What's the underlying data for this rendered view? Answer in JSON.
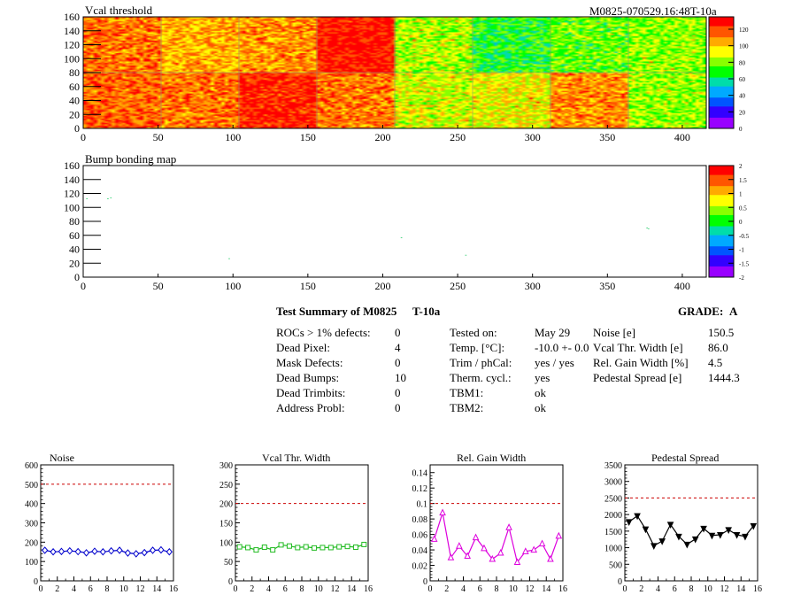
{
  "header": {
    "run_id": "M0825-070529.16:48T-10a"
  },
  "summary": {
    "title": "Test Summary of M0825",
    "temp_tag": "T-10a",
    "grade_label": "GRADE:",
    "grade": "A",
    "col1": [
      {
        "label": "ROCs > 1% defects:",
        "value": "0"
      },
      {
        "label": "Dead Pixel:",
        "value": "4"
      },
      {
        "label": "Mask Defects:",
        "value": "0"
      },
      {
        "label": "Dead Bumps:",
        "value": "10"
      },
      {
        "label": "Dead Trimbits:",
        "value": "0"
      },
      {
        "label": "Address Probl:",
        "value": "0"
      }
    ],
    "col2": [
      {
        "label": "Tested on:",
        "value": "May 29"
      },
      {
        "label": "Temp. [°C]:",
        "value": "-10.0 +- 0.0"
      },
      {
        "label": "Trim / phCal:",
        "value": "yes / yes"
      },
      {
        "label": "Therm. cycl.:",
        "value": "yes"
      },
      {
        "label": "TBM1:",
        "value": "ok"
      },
      {
        "label": "TBM2:",
        "value": "ok"
      }
    ],
    "col3": [
      {
        "label": "Noise [e]",
        "value": "150.5"
      },
      {
        "label": "Vcal Thr. Width [e]",
        "value": "86.0"
      },
      {
        "label": "Rel. Gain Width [%]",
        "value": "4.5"
      },
      {
        "label": "Pedestal Spread [e]",
        "value": "1444.3"
      }
    ]
  },
  "chart_data": [
    {
      "type": "heatmap",
      "title": "Vcal threshold",
      "xlim": [
        0,
        416
      ],
      "ylim": [
        0,
        160
      ],
      "xticks": [
        "0",
        "50",
        "100",
        "150",
        "200",
        "250",
        "300",
        "350",
        "400"
      ],
      "yticks": [
        "0",
        "20",
        "40",
        "60",
        "80",
        "100",
        "120",
        "140",
        "160"
      ],
      "zticks": [
        "0",
        "20",
        "40",
        "60",
        "80",
        "100",
        "120"
      ],
      "zlim": [
        0,
        135
      ],
      "roc_cols": 8,
      "roc_rows": 2,
      "roc_means_top": [
        112,
        104,
        108,
        128,
        84,
        68,
        76,
        80
      ],
      "roc_means_bottom": [
        115,
        112,
        126,
        112,
        88,
        92,
        108,
        82
      ]
    },
    {
      "type": "heatmap",
      "title": "Bump bonding map",
      "xlim": [
        0,
        416
      ],
      "ylim": [
        0,
        160
      ],
      "xticks": [
        "0",
        "50",
        "100",
        "150",
        "200",
        "250",
        "300",
        "350",
        "400"
      ],
      "yticks": [
        "0",
        "20",
        "40",
        "60",
        "80",
        "100",
        "120",
        "140",
        "160"
      ],
      "zticks": [
        "-2",
        "-1.5",
        "-1",
        "-0.5",
        "0",
        "0.5",
        "1",
        "1.5",
        "2"
      ],
      "zlim": [
        -2,
        2
      ],
      "points": [
        [
          2,
          112
        ],
        [
          16,
          112
        ],
        [
          18,
          113
        ],
        [
          97,
          26
        ],
        [
          212,
          56
        ],
        [
          255,
          31
        ],
        [
          376,
          70
        ],
        [
          377,
          69
        ]
      ]
    },
    {
      "type": "line",
      "title": "Noise",
      "x": [
        0,
        1,
        2,
        3,
        4,
        5,
        6,
        7,
        8,
        9,
        10,
        11,
        12,
        13,
        14,
        15
      ],
      "values": [
        158,
        150,
        152,
        155,
        151,
        145,
        153,
        150,
        155,
        158,
        144,
        140,
        146,
        158,
        160,
        150
      ],
      "xlim": [
        0,
        16
      ],
      "ylim": [
        0,
        600
      ],
      "limit": 500,
      "xticks": [
        "0",
        "2",
        "4",
        "6",
        "8",
        "10",
        "12",
        "14",
        "16"
      ],
      "yticks": [
        "0",
        "100",
        "200",
        "300",
        "400",
        "500",
        "600"
      ],
      "color": "#0000cc",
      "marker": "diamond"
    },
    {
      "type": "line",
      "title": "Vcal Thr. Width",
      "x": [
        0,
        1,
        2,
        3,
        4,
        5,
        6,
        7,
        8,
        9,
        10,
        11,
        12,
        13,
        14,
        15
      ],
      "values": [
        88,
        86,
        80,
        87,
        80,
        93,
        90,
        86,
        88,
        85,
        86,
        86,
        88,
        89,
        87,
        94
      ],
      "xlim": [
        0,
        16
      ],
      "ylim": [
        0,
        300
      ],
      "limit": 200,
      "xticks": [
        "0",
        "2",
        "4",
        "6",
        "8",
        "10",
        "12",
        "14",
        "16"
      ],
      "yticks": [
        "0",
        "50",
        "100",
        "150",
        "200",
        "250",
        "300"
      ],
      "color": "#22bb22",
      "marker": "square"
    },
    {
      "type": "line",
      "title": "Rel. Gain Width",
      "x": [
        0,
        1,
        2,
        3,
        4,
        5,
        6,
        7,
        8,
        9,
        10,
        11,
        12,
        13,
        14,
        15
      ],
      "values": [
        0.054,
        0.088,
        0.03,
        0.045,
        0.032,
        0.056,
        0.042,
        0.028,
        0.036,
        0.069,
        0.024,
        0.038,
        0.04,
        0.048,
        0.028,
        0.058
      ],
      "xlim": [
        0,
        16
      ],
      "ylim": [
        0,
        0.15
      ],
      "limit": 0.1,
      "xticks": [
        "0",
        "2",
        "4",
        "6",
        "8",
        "10",
        "12",
        "14",
        "16"
      ],
      "yticks": [
        "0",
        "0.02",
        "0.04",
        "0.06",
        "0.08",
        "0.1",
        "0.12",
        "0.14"
      ],
      "color": "#dd00dd",
      "marker": "triangle"
    },
    {
      "type": "line",
      "title": "Pedestal Spread",
      "x": [
        0,
        1,
        2,
        3,
        4,
        5,
        6,
        7,
        8,
        9,
        10,
        11,
        12,
        13,
        14,
        15
      ],
      "values": [
        1780,
        1960,
        1560,
        1060,
        1200,
        1700,
        1340,
        1100,
        1260,
        1580,
        1370,
        1390,
        1540,
        1390,
        1340,
        1660
      ],
      "xlim": [
        0,
        16
      ],
      "ylim": [
        0,
        3500
      ],
      "limit": 2500,
      "xticks": [
        "0",
        "2",
        "4",
        "6",
        "8",
        "10",
        "12",
        "14",
        "16"
      ],
      "yticks": [
        "0",
        "500",
        "1000",
        "1500",
        "2000",
        "2500",
        "3000",
        "3500"
      ],
      "color": "#000000",
      "marker": "triangle-down"
    }
  ],
  "colors": {
    "limit_line": "#cc0000",
    "palette": [
      "#9900ff",
      "#3300ff",
      "#0055ff",
      "#00aaff",
      "#00ddaa",
      "#00ff00",
      "#88ff00",
      "#ffff00",
      "#ffaa00",
      "#ff5500",
      "#ff0000"
    ]
  }
}
